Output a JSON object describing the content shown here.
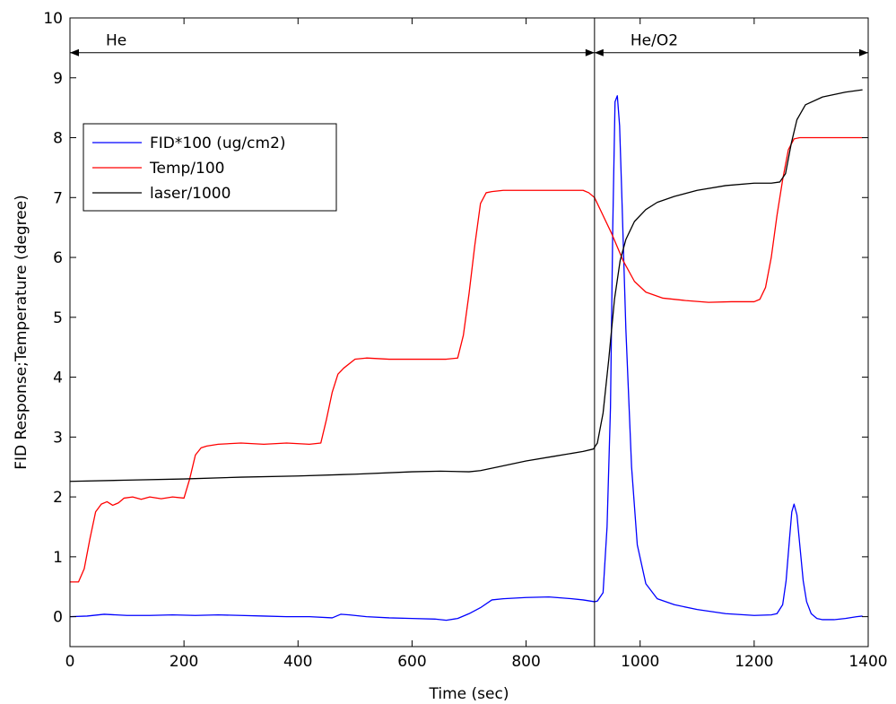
{
  "chart_data": {
    "type": "line",
    "xlabel": "Time (sec)",
    "ylabel": "FID Response;Temperature (degree)",
    "xlim": [
      0,
      1400
    ],
    "ylim": [
      -0.5,
      10
    ],
    "x_ticks": [
      0,
      200,
      400,
      600,
      800,
      1000,
      1200,
      1400
    ],
    "x_tick_labels": [
      "0",
      "200",
      "400",
      "600",
      "800",
      "1000",
      "1200",
      "1400"
    ],
    "y_ticks": [
      0,
      1,
      2,
      3,
      4,
      5,
      6,
      7,
      8,
      9,
      10
    ],
    "y_tick_labels": [
      "0",
      "1",
      "2",
      "3",
      "4",
      "5",
      "6",
      "7",
      "8",
      "9",
      "10"
    ],
    "grid": false,
    "legend_position": "upper-left",
    "colors": {
      "fid": "#0000ff",
      "temp": "#ff0000",
      "laser": "#000000"
    },
    "series": [
      {
        "name": "FID*100 (ug/cm2)",
        "color": "#0000ff",
        "x": [
          0,
          30,
          60,
          100,
          140,
          180,
          220,
          260,
          300,
          340,
          380,
          420,
          460,
          475,
          490,
          520,
          560,
          600,
          640,
          660,
          680,
          700,
          720,
          740,
          760,
          800,
          840,
          880,
          900,
          920,
          925,
          935,
          942,
          948,
          952,
          956,
          960,
          964,
          968,
          975,
          985,
          995,
          1010,
          1030,
          1060,
          1100,
          1150,
          1200,
          1230,
          1240,
          1250,
          1256,
          1262,
          1266,
          1270,
          1275,
          1280,
          1286,
          1292,
          1300,
          1310,
          1320,
          1340,
          1360,
          1380,
          1390
        ],
        "y": [
          0.0,
          0.01,
          0.04,
          0.02,
          0.02,
          0.03,
          0.02,
          0.03,
          0.02,
          0.01,
          0.0,
          0.0,
          -0.02,
          0.04,
          0.03,
          0.0,
          -0.02,
          -0.03,
          -0.04,
          -0.06,
          -0.03,
          0.05,
          0.15,
          0.28,
          0.3,
          0.32,
          0.33,
          0.3,
          0.28,
          0.25,
          0.26,
          0.4,
          1.5,
          3.5,
          6.5,
          8.6,
          8.7,
          8.2,
          7.0,
          4.8,
          2.5,
          1.2,
          0.55,
          0.3,
          0.2,
          0.12,
          0.05,
          0.02,
          0.03,
          0.05,
          0.2,
          0.6,
          1.3,
          1.75,
          1.88,
          1.7,
          1.2,
          0.6,
          0.25,
          0.05,
          -0.03,
          -0.05,
          -0.05,
          -0.03,
          0.0,
          0.01
        ]
      },
      {
        "name": "Temp/100",
        "color": "#ff0000",
        "x": [
          0,
          15,
          25,
          35,
          45,
          55,
          65,
          75,
          85,
          95,
          110,
          125,
          140,
          160,
          180,
          200,
          210,
          220,
          230,
          240,
          260,
          300,
          340,
          380,
          420,
          440,
          450,
          460,
          470,
          480,
          500,
          520,
          560,
          600,
          640,
          660,
          680,
          690,
          700,
          710,
          720,
          730,
          740,
          760,
          800,
          840,
          880,
          900,
          910,
          920,
          930,
          950,
          970,
          990,
          1010,
          1040,
          1080,
          1120,
          1160,
          1200,
          1210,
          1220,
          1230,
          1240,
          1250,
          1260,
          1270,
          1280,
          1290,
          1300,
          1320,
          1360,
          1390
        ],
        "y": [
          0.58,
          0.58,
          0.8,
          1.3,
          1.75,
          1.88,
          1.92,
          1.86,
          1.9,
          1.98,
          2.0,
          1.96,
          2.0,
          1.97,
          2.0,
          1.98,
          2.3,
          2.7,
          2.82,
          2.85,
          2.88,
          2.9,
          2.88,
          2.9,
          2.88,
          2.9,
          3.3,
          3.75,
          4.05,
          4.15,
          4.3,
          4.32,
          4.3,
          4.3,
          4.3,
          4.3,
          4.32,
          4.7,
          5.4,
          6.2,
          6.9,
          7.08,
          7.1,
          7.12,
          7.12,
          7.12,
          7.12,
          7.12,
          7.08,
          7.0,
          6.8,
          6.4,
          5.95,
          5.6,
          5.42,
          5.32,
          5.28,
          5.25,
          5.26,
          5.26,
          5.3,
          5.5,
          6.0,
          6.7,
          7.3,
          7.8,
          7.98,
          8.0,
          8.0,
          8.0,
          8.0,
          8.0,
          8.0
        ]
      },
      {
        "name": "laser/1000",
        "color": "#000000",
        "x": [
          0,
          100,
          200,
          300,
          400,
          500,
          600,
          650,
          700,
          720,
          750,
          800,
          850,
          900,
          918,
          925,
          935,
          945,
          955,
          965,
          975,
          990,
          1010,
          1030,
          1060,
          1100,
          1150,
          1200,
          1230,
          1245,
          1255,
          1265,
          1275,
          1290,
          1320,
          1360,
          1390
        ],
        "y": [
          2.26,
          2.28,
          2.3,
          2.33,
          2.35,
          2.38,
          2.42,
          2.43,
          2.42,
          2.44,
          2.5,
          2.6,
          2.68,
          2.76,
          2.8,
          2.9,
          3.4,
          4.3,
          5.3,
          5.95,
          6.3,
          6.6,
          6.8,
          6.92,
          7.02,
          7.12,
          7.2,
          7.24,
          7.24,
          7.26,
          7.4,
          7.9,
          8.3,
          8.55,
          8.68,
          8.76,
          8.8
        ]
      }
    ],
    "annotations": [
      {
        "text": "He",
        "kind": "double-arrow",
        "x_start": 0,
        "x_end": 920,
        "y": 9.42
      },
      {
        "text": "He/O2",
        "kind": "double-arrow",
        "x_start": 920,
        "x_end": 1400,
        "y": 9.42
      },
      {
        "kind": "vertical-line",
        "x": 920
      }
    ]
  }
}
